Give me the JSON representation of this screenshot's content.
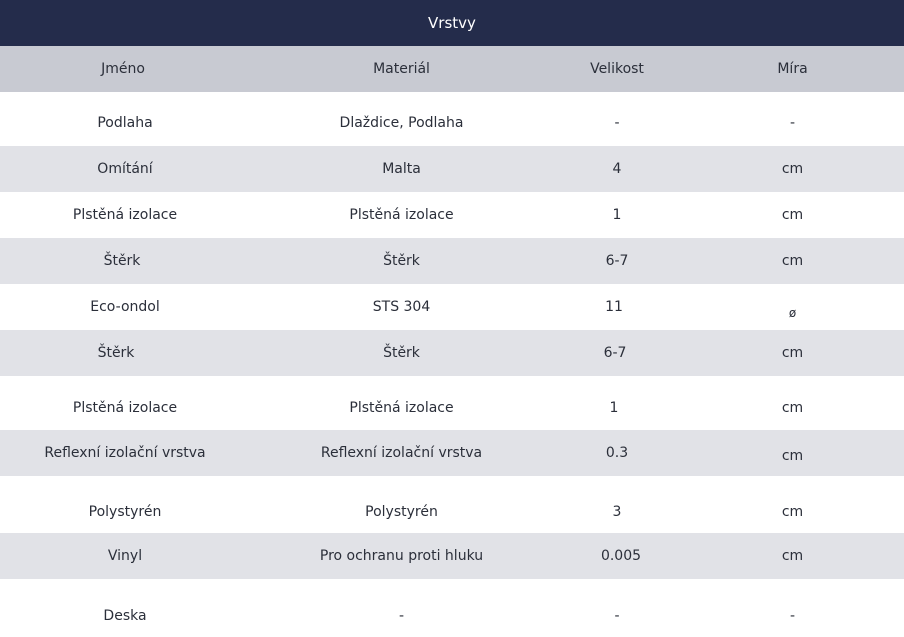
{
  "title": "Vrstvy",
  "columns": {
    "name": "Jméno",
    "material": "Materiál",
    "size": "Velikost",
    "unit": "Míra"
  },
  "rows": [
    {
      "name": "Podlaha",
      "material": "Dlaždice, Podlaha",
      "size": "-",
      "unit": "-"
    },
    {
      "name": "Omítání",
      "material": "Malta",
      "size": "4",
      "unit": "cm"
    },
    {
      "name": "Plstěná izolace",
      "material": "Plstěná izolace",
      "size": "1",
      "unit": "cm"
    },
    {
      "name": "Štěrk",
      "material": "Štěrk",
      "size": "6-7",
      "unit": "cm"
    },
    {
      "name": "Eco-ondol",
      "material": "STS 304",
      "size": "11",
      "unit": "ø"
    },
    {
      "name": "Štěrk",
      "material": "Štěrk",
      "size": "6-7",
      "unit": "cm"
    },
    {
      "name": "Plstěná izolace",
      "material": "Plstěná izolace",
      "size": "1",
      "unit": "cm"
    },
    {
      "name": "Reflexní izolační vrstva",
      "material": "Reflexní izolační vrstva",
      "size": "0.3",
      "unit": "cm"
    },
    {
      "name": "Polystyrén",
      "material": "Polystyrén",
      "size": "3",
      "unit": "cm"
    },
    {
      "name": "Vinyl",
      "material": "Pro ochranu proti hluku",
      "size": "0.005",
      "unit": "cm"
    },
    {
      "name": "Deska",
      "material": "-",
      "size": "-",
      "unit": "-"
    }
  ]
}
